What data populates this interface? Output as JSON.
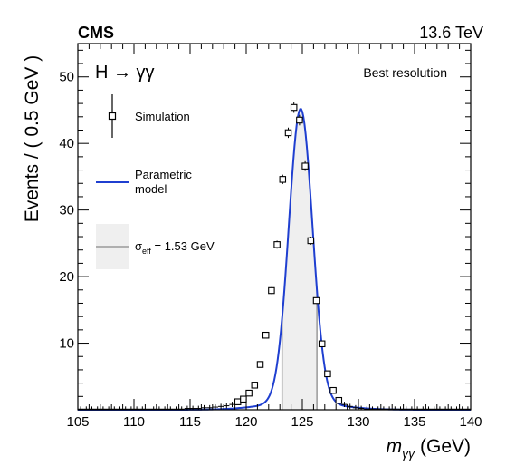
{
  "chart_data": {
    "type": "scatter",
    "experiment": "CMS",
    "energy": "13.6 TeV",
    "process": "H → γγ",
    "category": "Best resolution",
    "xlabel_symbol": "m",
    "xlabel_sub": "γγ",
    "xlabel_unit": " (GeV)",
    "ylabel": "Events / ( 0.5 GeV )",
    "xlim": [
      105,
      140
    ],
    "ylim": [
      0,
      55
    ],
    "xticks": [
      105,
      110,
      115,
      120,
      125,
      130,
      135,
      140
    ],
    "yticks": [
      10,
      20,
      30,
      40,
      50
    ],
    "grid": false,
    "legend_position": "top-left",
    "legend": {
      "simulation": "Simulation",
      "model_line1": "Parametric",
      "model_line2": "model",
      "sigma_symbol": "σ",
      "sigma_sub": "eff",
      "sigma_text": " = 1.53 GeV"
    },
    "sigma_eff_band": [
      123.2,
      126.3
    ],
    "model": {
      "mean": 124.85,
      "sigma": 1.05,
      "peak": 45.2,
      "tail_sigma": 3.2,
      "tail_frac": 0.025
    },
    "colors": {
      "model": "#1f3fd0",
      "band": "#efefef",
      "band_edge": "#9a9a9a",
      "points": "#000000"
    },
    "series": [
      {
        "name": "Simulation",
        "x": [
          105.25,
          105.75,
          106.25,
          106.75,
          107.25,
          107.75,
          108.25,
          108.75,
          109.25,
          109.75,
          110.25,
          110.75,
          111.25,
          111.75,
          112.25,
          112.75,
          113.25,
          113.75,
          114.25,
          114.75,
          115.25,
          115.75,
          116.25,
          116.75,
          117.25,
          117.75,
          118.25,
          118.75,
          119.25,
          119.75,
          120.25,
          120.75,
          121.25,
          121.75,
          122.25,
          122.75,
          123.25,
          123.75,
          124.25,
          124.75,
          125.25,
          125.75,
          126.25,
          126.75,
          127.25,
          127.75,
          128.25,
          128.75,
          129.25,
          129.75,
          130.25,
          130.75,
          131.25,
          131.75,
          132.25,
          132.75,
          133.25,
          133.75,
          134.25,
          134.75,
          135.25,
          135.75,
          136.25,
          136.75,
          137.25,
          137.75,
          138.25,
          138.75,
          139.25,
          139.75
        ],
        "y": [
          0.1,
          0.1,
          0.1,
          0.1,
          0.1,
          0.1,
          0.1,
          0.1,
          0.1,
          0.1,
          0.1,
          0.1,
          0.1,
          0.1,
          0.1,
          0.1,
          0.1,
          0.1,
          0.1,
          0.2,
          0.2,
          0.2,
          0.3,
          0.3,
          0.4,
          0.5,
          0.6,
          0.8,
          1.2,
          1.6,
          2.5,
          3.7,
          6.8,
          11.2,
          17.9,
          24.8,
          34.6,
          41.6,
          45.4,
          43.5,
          36.6,
          25.4,
          16.4,
          9.9,
          5.4,
          2.9,
          1.4,
          0.8,
          0.5,
          0.3,
          0.2,
          0.1,
          0.1,
          0.1,
          0.1,
          0.1,
          0.1,
          0.1,
          0.1,
          0.1,
          0.1,
          0.1,
          0.1,
          0.1,
          0.1,
          0.1,
          0.1,
          0.1,
          0.1,
          0.1
        ]
      }
    ]
  }
}
